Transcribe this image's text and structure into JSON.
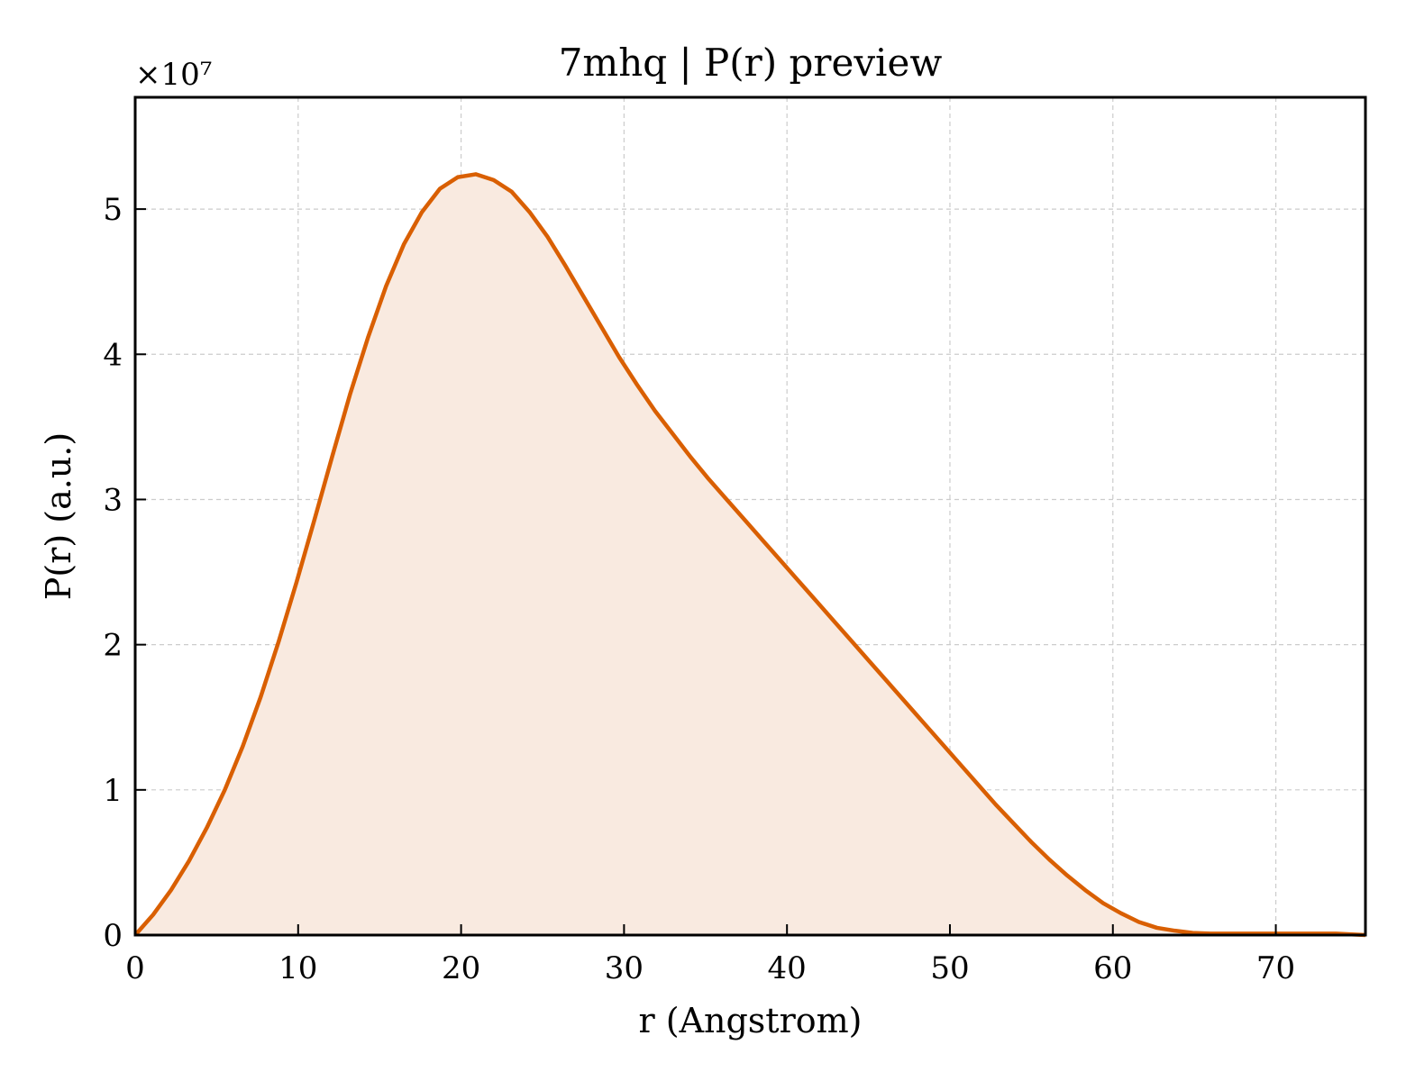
{
  "chart_data": {
    "type": "area",
    "title": "7mhq | P(r) preview",
    "xlabel": "r (Angstrom)",
    "ylabel": "P(r) (a.u.)",
    "y_multiplier_label": "×10⁷",
    "xlim": [
      0,
      75.5
    ],
    "ylim": [
      0,
      5.77
    ],
    "y_scale_factor": 10000000,
    "xticks": [
      0,
      10,
      20,
      30,
      40,
      50,
      60,
      70
    ],
    "yticks": [
      0,
      1,
      2,
      3,
      4,
      5
    ],
    "grid": true,
    "legend": "none",
    "line_color": "#d95f02",
    "fill_color": "#f9eae0",
    "series": [
      {
        "x": [
          0,
          1.1,
          2.2,
          3.3,
          4.4,
          5.5,
          6.6,
          7.7,
          8.8,
          9.9,
          11.0,
          12.1,
          13.2,
          14.3,
          15.4,
          16.5,
          17.6,
          18.7,
          19.8,
          20.9,
          22.0,
          23.1,
          24.2,
          25.3,
          26.4,
          27.5,
          28.6,
          29.7,
          30.8,
          31.9,
          33.0,
          34.1,
          35.2,
          36.3,
          37.4,
          38.5,
          39.6,
          40.7,
          41.8,
          42.9,
          44.0,
          45.1,
          46.2,
          47.3,
          48.4,
          49.5,
          50.6,
          51.7,
          52.8,
          53.9,
          55.0,
          56.1,
          57.2,
          58.3,
          59.4,
          60.5,
          61.6,
          62.7,
          63.8,
          64.9,
          66.0,
          67.1,
          68.2,
          69.3,
          70.4,
          71.5,
          72.6,
          73.7,
          75.5
        ],
        "y": [
          0.0,
          0.14,
          0.31,
          0.51,
          0.74,
          1.0,
          1.3,
          1.64,
          2.02,
          2.43,
          2.86,
          3.3,
          3.73,
          4.12,
          4.47,
          4.76,
          4.98,
          5.14,
          5.22,
          5.24,
          5.2,
          5.12,
          4.98,
          4.81,
          4.61,
          4.4,
          4.19,
          3.98,
          3.79,
          3.61,
          3.45,
          3.29,
          3.14,
          3.0,
          2.86,
          2.72,
          2.58,
          2.44,
          2.3,
          2.16,
          2.02,
          1.88,
          1.74,
          1.6,
          1.46,
          1.32,
          1.18,
          1.04,
          0.9,
          0.77,
          0.64,
          0.52,
          0.41,
          0.31,
          0.22,
          0.15,
          0.09,
          0.05,
          0.03,
          0.015,
          0.01,
          0.01,
          0.01,
          0.01,
          0.01,
          0.01,
          0.01,
          0.01,
          0.0
        ]
      }
    ]
  }
}
